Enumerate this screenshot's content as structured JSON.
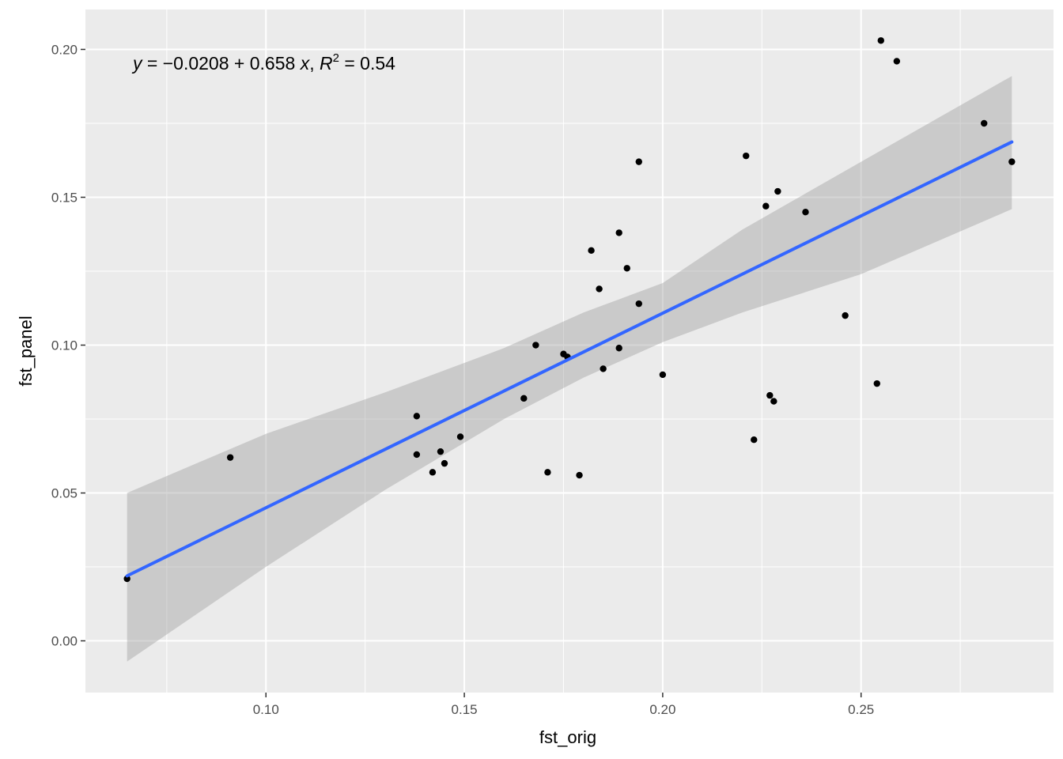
{
  "chart_data": {
    "type": "scatter",
    "xlabel": "fst_orig",
    "ylabel": "fst_panel",
    "xlim": [
      0.0545,
      0.2985
    ],
    "ylim": [
      -0.0175,
      0.2135
    ],
    "x_ticks": [
      0.1,
      0.15,
      0.2,
      0.25
    ],
    "x_tick_labels": [
      "0.10",
      "0.15",
      "0.20",
      "0.25"
    ],
    "y_ticks": [
      0.0,
      0.05,
      0.1,
      0.15,
      0.2
    ],
    "y_tick_labels": [
      "0.00",
      "0.05",
      "0.10",
      "0.15",
      "0.20"
    ],
    "grid": true,
    "points": [
      {
        "x": 0.065,
        "y": 0.021
      },
      {
        "x": 0.091,
        "y": 0.062
      },
      {
        "x": 0.138,
        "y": 0.076
      },
      {
        "x": 0.138,
        "y": 0.063
      },
      {
        "x": 0.142,
        "y": 0.057
      },
      {
        "x": 0.144,
        "y": 0.064
      },
      {
        "x": 0.145,
        "y": 0.06
      },
      {
        "x": 0.149,
        "y": 0.069
      },
      {
        "x": 0.165,
        "y": 0.082
      },
      {
        "x": 0.168,
        "y": 0.1
      },
      {
        "x": 0.171,
        "y": 0.057
      },
      {
        "x": 0.175,
        "y": 0.097
      },
      {
        "x": 0.176,
        "y": 0.096
      },
      {
        "x": 0.179,
        "y": 0.056
      },
      {
        "x": 0.182,
        "y": 0.132
      },
      {
        "x": 0.184,
        "y": 0.119
      },
      {
        "x": 0.185,
        "y": 0.092
      },
      {
        "x": 0.189,
        "y": 0.138
      },
      {
        "x": 0.189,
        "y": 0.099
      },
      {
        "x": 0.191,
        "y": 0.126
      },
      {
        "x": 0.194,
        "y": 0.162
      },
      {
        "x": 0.194,
        "y": 0.114
      },
      {
        "x": 0.2,
        "y": 0.09
      },
      {
        "x": 0.221,
        "y": 0.164
      },
      {
        "x": 0.223,
        "y": 0.068
      },
      {
        "x": 0.226,
        "y": 0.147
      },
      {
        "x": 0.227,
        "y": 0.083
      },
      {
        "x": 0.228,
        "y": 0.081
      },
      {
        "x": 0.229,
        "y": 0.152
      },
      {
        "x": 0.236,
        "y": 0.145
      },
      {
        "x": 0.246,
        "y": 0.11
      },
      {
        "x": 0.254,
        "y": 0.087
      },
      {
        "x": 0.255,
        "y": 0.203
      },
      {
        "x": 0.259,
        "y": 0.196
      },
      {
        "x": 0.281,
        "y": 0.175
      },
      {
        "x": 0.288,
        "y": 0.162
      }
    ],
    "regression": {
      "intercept": -0.0208,
      "slope": 0.658,
      "r_squared": 0.54,
      "x_range": [
        0.065,
        0.288
      ],
      "ci_band": [
        {
          "x": 0.065,
          "lower": -0.007,
          "upper": 0.05
        },
        {
          "x": 0.1,
          "lower": 0.025,
          "upper": 0.07
        },
        {
          "x": 0.13,
          "lower": 0.051,
          "upper": 0.084
        },
        {
          "x": 0.16,
          "lower": 0.075,
          "upper": 0.099
        },
        {
          "x": 0.18,
          "lower": 0.089,
          "upper": 0.111
        },
        {
          "x": 0.2,
          "lower": 0.101,
          "upper": 0.121
        },
        {
          "x": 0.22,
          "lower": 0.111,
          "upper": 0.139
        },
        {
          "x": 0.25,
          "lower": 0.124,
          "upper": 0.162
        },
        {
          "x": 0.288,
          "lower": 0.146,
          "upper": 0.191
        }
      ]
    },
    "colors": {
      "panel_bg": "#ebebeb",
      "grid": "#ffffff",
      "point": "#000000",
      "line": "#3366ff",
      "band": "#999999"
    }
  }
}
